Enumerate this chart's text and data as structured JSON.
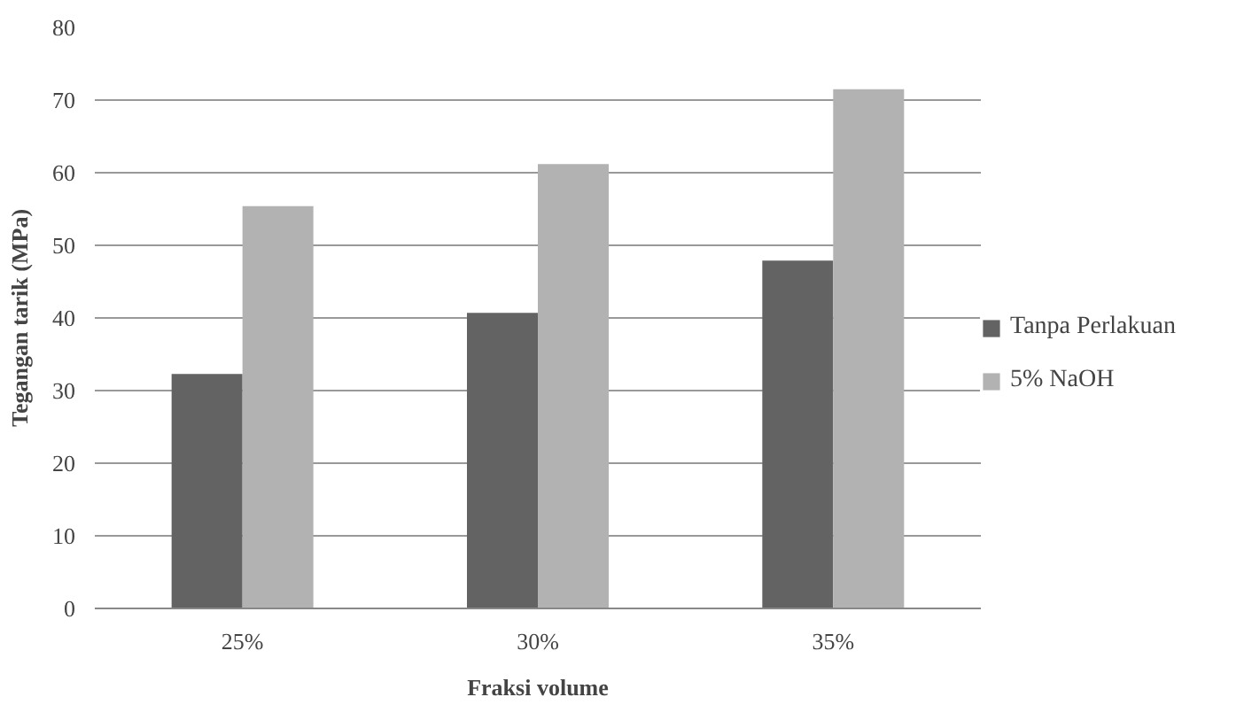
{
  "chart_data": {
    "type": "bar",
    "xlabel": "Fraksi volume",
    "ylabel": "Tegangan tarik (MPa)",
    "categories": [
      "25%",
      "30%",
      "35%"
    ],
    "series": [
      {
        "name": "Tanpa Perlakuan",
        "color": "#636363",
        "values": [
          32.3,
          40.7,
          47.9
        ]
      },
      {
        "name": "5% NaOH",
        "color": "#b2b2b2",
        "values": [
          55.4,
          61.2,
          71.5
        ]
      }
    ],
    "ylim": [
      0,
      80
    ],
    "yticks": [
      0,
      10,
      20,
      30,
      40,
      50,
      60,
      70,
      80
    ],
    "grid": "y",
    "legend": "right"
  }
}
